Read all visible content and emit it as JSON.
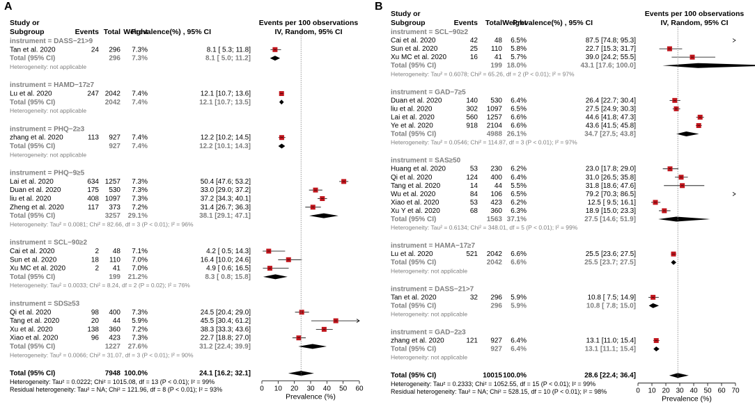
{
  "chart_data": [
    {
      "type": "forest",
      "panel_label": "A",
      "headers": {
        "study": [
          "Study or",
          "Subgroup"
        ],
        "events": "Events",
        "total": "Total",
        "weight": "Weight",
        "ci": "Prevalence(%) , 95% CI",
        "plot": [
          "Events per 100 observations",
          "IV, Random, 95% CI"
        ]
      },
      "xlabel": "Prevalence (%)",
      "xlim": [
        0,
        60
      ],
      "xticks": [
        0,
        10,
        20,
        30,
        40,
        50,
        60
      ],
      "reference": 24.1,
      "groups": [
        {
          "title": "instrument = DASS−21>9",
          "studies": [
            {
              "name": "Tan et al. 2020",
              "events": "24",
              "total": "296",
              "weight": "7.3%",
              "ci": "8.1 [ 5.3; 11.8]",
              "est": 8.1,
              "lo": 5.3,
              "hi": 11.8
            }
          ],
          "total": {
            "label": "Total (95% CI)",
            "total": "296",
            "weight": "7.3%",
            "ci": "8.1 [ 5.0; 11.2]",
            "est": 8.1,
            "lo": 5.0,
            "hi": 11.2
          },
          "het": "Heterogeneity: not applicable"
        },
        {
          "title": "instrument = HAMD−17≥7",
          "studies": [
            {
              "name": "Lu et al. 2020",
              "events": "247",
              "total": "2042",
              "weight": "7.4%",
              "ci": "12.1 [10.7; 13.6]",
              "est": 12.1,
              "lo": 10.7,
              "hi": 13.6
            }
          ],
          "total": {
            "label": "Total (95% CI)",
            "total": "2042",
            "weight": "7.4%",
            "ci": "12.1 [10.7; 13.5]",
            "est": 12.1,
            "lo": 10.7,
            "hi": 13.5
          },
          "het": "Heterogeneity: not applicable"
        },
        {
          "title": "instrument = PHQ−2≥3",
          "studies": [
            {
              "name": "zhang et al. 2020",
              "events": "113",
              "total": "927",
              "weight": "7.4%",
              "ci": "12.2 [10.2; 14.5]",
              "est": 12.2,
              "lo": 10.2,
              "hi": 14.5
            }
          ],
          "total": {
            "label": "Total (95% CI)",
            "total": "927",
            "weight": "7.4%",
            "ci": "12.2 [10.1; 14.3]",
            "est": 12.2,
            "lo": 10.1,
            "hi": 14.3
          },
          "het": "Heterogeneity: not applicable"
        },
        {
          "title": "instrument = PHQ−9≥5",
          "studies": [
            {
              "name": "Lai et al. 2020",
              "events": "634",
              "total": "1257",
              "weight": "7.3%",
              "ci": "50.4 [47.6; 53.2]",
              "est": 50.4,
              "lo": 47.6,
              "hi": 53.2
            },
            {
              "name": "Duan et al. 2020",
              "events": "175",
              "total": "530",
              "weight": "7.3%",
              "ci": "33.0 [29.0; 37.2]",
              "est": 33.0,
              "lo": 29.0,
              "hi": 37.2
            },
            {
              "name": "liu et al. 2020",
              "events": "408",
              "total": "1097",
              "weight": "7.3%",
              "ci": "37.2 [34.3; 40.1]",
              "est": 37.2,
              "lo": 34.3,
              "hi": 40.1
            },
            {
              "name": "Zheng et al. 2020",
              "events": "117",
              "total": "373",
              "weight": "7.2%",
              "ci": "31.4 [26.7; 36.3]",
              "est": 31.4,
              "lo": 26.7,
              "hi": 36.3
            }
          ],
          "total": {
            "label": "Total (95% CI)",
            "total": "3257",
            "weight": "29.1%",
            "ci": "38.1 [29.1; 47.1]",
            "est": 38.1,
            "lo": 29.1,
            "hi": 47.1
          },
          "het": "Heterogeneity: Tau² = 0.0081; Chi² = 82.66, df = 3 (P < 0.01); I² = 96%"
        },
        {
          "title": "instrument = SCL−90≥2",
          "studies": [
            {
              "name": "Cai et al. 2020",
              "events": "2",
              "total": "48",
              "weight": "7.1%",
              "ci": "4.2 [ 0.5; 14.3]",
              "est": 4.2,
              "lo": 0.5,
              "hi": 14.3
            },
            {
              "name": "Sun et al. 2020",
              "events": "18",
              "total": "110",
              "weight": "7.0%",
              "ci": "16.4 [10.0; 24.6]",
              "est": 16.4,
              "lo": 10.0,
              "hi": 24.6
            },
            {
              "name": "Xu MC et al. 2020",
              "events": "2",
              "total": "41",
              "weight": "7.0%",
              "ci": "4.9 [ 0.6; 16.5]",
              "est": 4.9,
              "lo": 0.6,
              "hi": 16.5
            }
          ],
          "total": {
            "label": "Total (95% CI)",
            "total": "199",
            "weight": "21.2%",
            "ci": "8.3 [ 0.8; 15.8]",
            "est": 8.3,
            "lo": 0.8,
            "hi": 15.8
          },
          "het": "Heterogeneity: Tau² = 0.0033; Chi² = 8.24, df = 2 (P = 0.02); I² = 76%"
        },
        {
          "title": "instrument = SDS≥53",
          "studies": [
            {
              "name": "Qi et al. 2020",
              "events": "98",
              "total": "400",
              "weight": "7.3%",
              "ci": "24.5 [20.4; 29.0]",
              "est": 24.5,
              "lo": 20.4,
              "hi": 29.0
            },
            {
              "name": "Tang et al. 2020",
              "events": "20",
              "total": "44",
              "weight": "5.9%",
              "ci": "45.5 [30.4; 61.2]",
              "est": 45.5,
              "lo": 30.4,
              "hi": 61.2
            },
            {
              "name": "Xu et al. 2020",
              "events": "138",
              "total": "360",
              "weight": "7.2%",
              "ci": "38.3 [33.3; 43.6]",
              "est": 38.3,
              "lo": 33.3,
              "hi": 43.6
            },
            {
              "name": "Xiao et al. 2020",
              "events": "96",
              "total": "423",
              "weight": "7.3%",
              "ci": "22.7 [18.8; 27.0]",
              "est": 22.7,
              "lo": 18.8,
              "hi": 27.0
            }
          ],
          "total": {
            "label": "Total (95% CI)",
            "total": "1227",
            "weight": "27.6%",
            "ci": "31.2 [22.4; 39.9]",
            "est": 31.2,
            "lo": 22.4,
            "hi": 39.9
          },
          "het": "Heterogeneity: Tau² = 0.0066; Chi² = 31.07, df = 3 (P < 0.01); I² = 90%"
        }
      ],
      "overall": {
        "label": "Total (95% CI)",
        "total": "7948",
        "weight": "100.0%",
        "ci": "24.1 [16.2; 32.1]",
        "est": 24.1,
        "lo": 16.2,
        "hi": 32.1
      },
      "footer": [
        "Heterogeneity: Tau² = 0.0222; Chi² = 1015.08, df = 13 (P < 0.01); I² = 99%",
        "Residual heterogeneity: Tau² = NA; Chi² = 121.96, df = 8 (P < 0.01); I² = 93%"
      ]
    },
    {
      "type": "forest",
      "panel_label": "B",
      "headers": {
        "study": [
          "Study or",
          "Subgroup"
        ],
        "events": "Events",
        "total": "Total",
        "weight": "Weight",
        "ci": "Prevalence(%) , 95% CI",
        "plot": [
          "Events per 100 observations",
          "IV, Random, 95% CI"
        ]
      },
      "xlabel": "Prevalence (%)",
      "xlim": [
        0,
        70
      ],
      "xticks": [
        0,
        10,
        20,
        30,
        40,
        50,
        60,
        70
      ],
      "reference": 28.6,
      "groups": [
        {
          "title": "instrument = SCL−90≥2",
          "studies": [
            {
              "name": "Cai et al. 2020",
              "events": "42",
              "total": "48",
              "weight": "6.5%",
              "ci": "87.5 [74.8; 95.3]",
              "est": 87.5,
              "lo": 74.8,
              "hi": 95.3
            },
            {
              "name": "Sun et al. 2020",
              "events": "25",
              "total": "110",
              "weight": "5.8%",
              "ci": "22.7 [15.3; 31.7]",
              "est": 22.7,
              "lo": 15.3,
              "hi": 31.7
            },
            {
              "name": "Xu MC et al. 2020",
              "events": "16",
              "total": "41",
              "weight": "5.7%",
              "ci": "39.0 [24.2; 55.5]",
              "est": 39.0,
              "lo": 24.2,
              "hi": 55.5
            }
          ],
          "total": {
            "label": "Total (95% CI)",
            "total": "199",
            "weight": "18.0%",
            "ci": "43.1 [17.6; 100.0]",
            "est": 43.1,
            "lo": 17.6,
            "hi": 100.0
          },
          "het": "Heterogeneity: Tau² = 0.6078; Chi² = 65.26, df = 2 (P < 0.01); I² = 97%"
        },
        {
          "title": "instrument = GAD−7≥5",
          "studies": [
            {
              "name": "Duan et al. 2020",
              "events": "140",
              "total": "530",
              "weight": "6.4%",
              "ci": "26.4 [22.7; 30.4]",
              "est": 26.4,
              "lo": 22.7,
              "hi": 30.4
            },
            {
              "name": "liu et al. 2020",
              "events": "302",
              "total": "1097",
              "weight": "6.5%",
              "ci": "27.5 [24.9; 30.3]",
              "est": 27.5,
              "lo": 24.9,
              "hi": 30.3
            },
            {
              "name": "Lai et al. 2020",
              "events": "560",
              "total": "1257",
              "weight": "6.6%",
              "ci": "44.6 [41.8; 47.3]",
              "est": 44.6,
              "lo": 41.8,
              "hi": 47.3
            },
            {
              "name": "Ye et al. 2020",
              "events": "918",
              "total": "2104",
              "weight": "6.6%",
              "ci": "43.6 [41.5; 45.8]",
              "est": 43.6,
              "lo": 41.5,
              "hi": 45.8
            }
          ],
          "total": {
            "label": "Total (95% CI)",
            "total": "4988",
            "weight": "26.1%",
            "ci": "34.7 [27.5; 43.8]",
            "est": 34.7,
            "lo": 27.5,
            "hi": 43.8
          },
          "het": "Heterogeneity: Tau² = 0.0546; Chi² = 114.87, df = 3 (P < 0.01); I² = 97%"
        },
        {
          "title": "instrument = SAS≥50",
          "studies": [
            {
              "name": "Huang et al. 2020",
              "events": "53",
              "total": "230",
              "weight": "6.2%",
              "ci": "23.0 [17.8; 29.0]",
              "est": 23.0,
              "lo": 17.8,
              "hi": 29.0
            },
            {
              "name": "Qi et al. 2020",
              "events": "124",
              "total": "400",
              "weight": "6.4%",
              "ci": "31.0 [26.5; 35.8]",
              "est": 31.0,
              "lo": 26.5,
              "hi": 35.8
            },
            {
              "name": "Tang et al. 2020",
              "events": "14",
              "total": "44",
              "weight": "5.5%",
              "ci": "31.8 [18.6; 47.6]",
              "est": 31.8,
              "lo": 18.6,
              "hi": 47.6
            },
            {
              "name": "Wu et al. 2020",
              "events": "84",
              "total": "106",
              "weight": "6.5%",
              "ci": "79.2 [70.3; 86.5]",
              "est": 79.2,
              "lo": 70.3,
              "hi": 86.5
            },
            {
              "name": "Xiao et al. 2020",
              "events": "53",
              "total": "423",
              "weight": "6.2%",
              "ci": "12.5 [ 9.5; 16.1]",
              "est": 12.5,
              "lo": 9.5,
              "hi": 16.1
            },
            {
              "name": "Xu Y et al. 2020",
              "events": "68",
              "total": "360",
              "weight": "6.3%",
              "ci": "18.9 [15.0; 23.3]",
              "est": 18.9,
              "lo": 15.0,
              "hi": 23.3
            }
          ],
          "total": {
            "label": "Total (95% CI)",
            "total": "1563",
            "weight": "37.1%",
            "ci": "27.5 [14.6; 51.9]",
            "est": 27.5,
            "lo": 14.6,
            "hi": 51.9
          },
          "het": "Heterogeneity: Tau² = 0.6134; Chi² = 348.01, df = 5 (P < 0.01); I² = 99%"
        },
        {
          "title": "instrument = HAMA−17≥7",
          "studies": [
            {
              "name": "Lu et al. 2020",
              "events": "521",
              "total": "2042",
              "weight": "6.6%",
              "ci": "25.5 [23.6; 27.5]",
              "est": 25.5,
              "lo": 23.6,
              "hi": 27.5
            }
          ],
          "total": {
            "label": "Total (95% CI)",
            "total": "2042",
            "weight": "6.6%",
            "ci": "25.5 [23.7; 27.5]",
            "est": 25.5,
            "lo": 23.7,
            "hi": 27.5
          },
          "het": "Heterogeneity: not applicable"
        },
        {
          "title": "instrument = DASS−21>7",
          "studies": [
            {
              "name": "Tan et al. 2020",
              "events": "32",
              "total": "296",
              "weight": "5.9%",
              "ci": "10.8 [ 7.5; 14.9]",
              "est": 10.8,
              "lo": 7.5,
              "hi": 14.9
            }
          ],
          "total": {
            "label": "Total (95% CI)",
            "total": "296",
            "weight": "5.9%",
            "ci": "10.8 [ 7.8; 15.0]",
            "est": 10.8,
            "lo": 7.8,
            "hi": 15.0
          },
          "het": "Heterogeneity: not applicable"
        },
        {
          "title": "instrument = GAD−2≥3",
          "studies": [
            {
              "name": "zhang et al. 2020",
              "events": "121",
              "total": "927",
              "weight": "6.4%",
              "ci": "13.1 [11.0; 15.4]",
              "est": 13.1,
              "lo": 11.0,
              "hi": 15.4
            }
          ],
          "total": {
            "label": "Total (95% CI)",
            "total": "927",
            "weight": "6.4%",
            "ci": "13.1 [11.1; 15.4]",
            "est": 13.1,
            "lo": 11.1,
            "hi": 15.4
          },
          "het": "Heterogeneity: not applicable"
        }
      ],
      "overall": {
        "label": "Total (95% CI)",
        "total": "10015",
        "weight": "100.0%",
        "ci": "28.6 [22.4; 36.4]",
        "est": 28.6,
        "lo": 22.4,
        "hi": 36.4
      },
      "footer": [
        "Heterogeneity: Tau² = 0.2333; Chi² = 1052.55, df = 15 (P < 0.01); I² = 99%",
        "Residual heterogeneity: Tau² = NA; Chi² = 528.15, df = 10 (P < 0.01); I² = 98%"
      ]
    }
  ],
  "colors": {
    "square": "#c0161d",
    "diamond": "#000000",
    "subgroup_text": "#7f7f7f",
    "ref_line": "#7f7f7f"
  }
}
